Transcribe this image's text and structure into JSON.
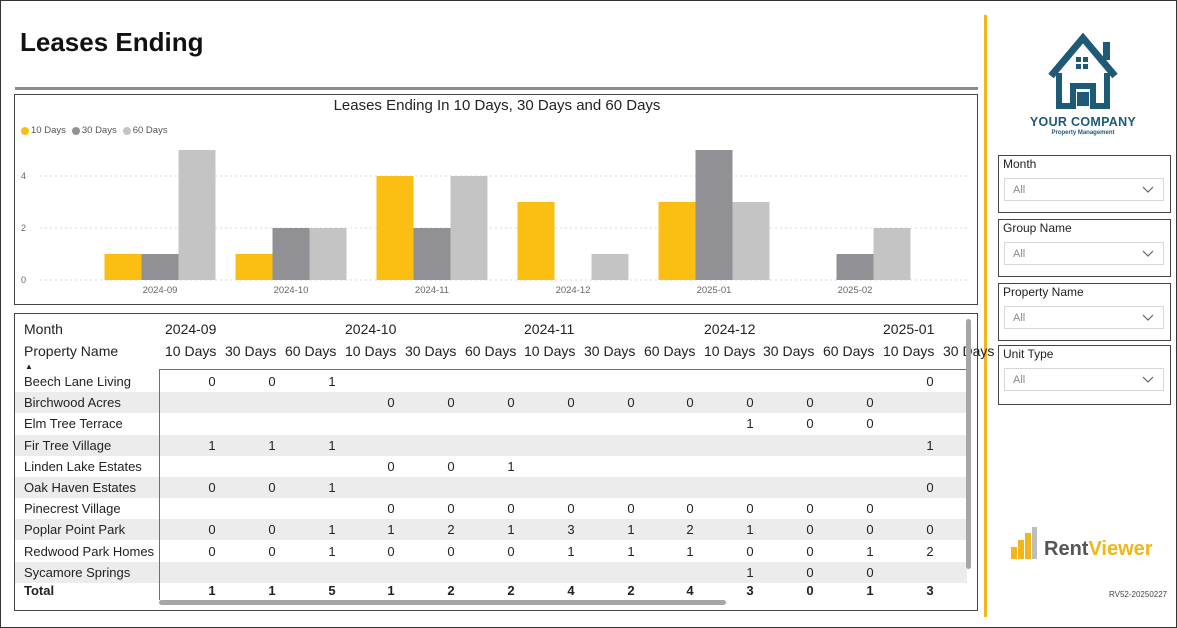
{
  "page": {
    "title": "Leases Ending",
    "version": "RV52-20250227"
  },
  "colors": {
    "accent": "#f2b51a",
    "d10": "#fbbe12",
    "d30": "#919094",
    "d60": "#c4c4c4",
    "brand_blue": "#1d5a75",
    "matrix_line": "#3a79c4"
  },
  "chart_data": {
    "type": "bar",
    "title": "Leases Ending In 10 Days, 30 Days and 60 Days",
    "categories": [
      "2024-09",
      "2024-10",
      "2024-11",
      "2024-12",
      "2025-01",
      "2025-02"
    ],
    "series": [
      {
        "name": "10 Days",
        "values": [
          1,
          1,
          4,
          3,
          3,
          0
        ]
      },
      {
        "name": "30 Days",
        "values": [
          1,
          2,
          2,
          0,
          5,
          1
        ]
      },
      {
        "name": "60 Days",
        "values": [
          5,
          2,
          4,
          1,
          3,
          2
        ]
      }
    ],
    "y_ticks": [
      "0",
      "2",
      "4"
    ],
    "ylim": [
      0,
      5
    ],
    "legend": "top-left",
    "grid": true
  },
  "matrix": {
    "month_label": "Month",
    "property_label": "Property Name",
    "months": [
      "2024-09",
      "2024-10",
      "2024-11",
      "2024-12",
      "2025-01"
    ],
    "subheaders": [
      "10 Days",
      "30 Days",
      "60 Days",
      "10 Days",
      "30 Days",
      "60 Days",
      "10 Days",
      "30 Days",
      "60 Days",
      "10 Days",
      "30 Days",
      "60 Days",
      "10 Days",
      "30 Days"
    ],
    "rows": [
      {
        "name": "Beech Lane Living",
        "cells": [
          "0",
          "0",
          "1",
          "",
          "",
          "",
          "",
          "",
          "",
          "",
          "",
          "",
          "0",
          ""
        ]
      },
      {
        "name": "Birchwood Acres",
        "cells": [
          "",
          "",
          "",
          "0",
          "0",
          "0",
          "0",
          "0",
          "0",
          "0",
          "0",
          "0",
          "",
          ""
        ]
      },
      {
        "name": "Elm Tree Terrace",
        "cells": [
          "",
          "",
          "",
          "",
          "",
          "",
          "",
          "",
          "",
          "1",
          "0",
          "0",
          "",
          ""
        ]
      },
      {
        "name": "Fir Tree Village",
        "cells": [
          "1",
          "1",
          "1",
          "",
          "",
          "",
          "",
          "",
          "",
          "",
          "",
          "",
          "1",
          ""
        ]
      },
      {
        "name": "Linden Lake Estates",
        "cells": [
          "",
          "",
          "",
          "0",
          "0",
          "1",
          "",
          "",
          "",
          "",
          "",
          "",
          "",
          ""
        ]
      },
      {
        "name": "Oak Haven Estates",
        "cells": [
          "0",
          "0",
          "1",
          "",
          "",
          "",
          "",
          "",
          "",
          "",
          "",
          "",
          "0",
          ""
        ]
      },
      {
        "name": "Pinecrest Village",
        "cells": [
          "",
          "",
          "",
          "0",
          "0",
          "0",
          "0",
          "0",
          "0",
          "0",
          "0",
          "0",
          "",
          ""
        ]
      },
      {
        "name": "Poplar Point Park",
        "cells": [
          "0",
          "0",
          "1",
          "1",
          "2",
          "1",
          "3",
          "1",
          "2",
          "1",
          "0",
          "0",
          "0",
          ""
        ]
      },
      {
        "name": "Redwood Park Homes",
        "cells": [
          "0",
          "0",
          "1",
          "0",
          "0",
          "0",
          "1",
          "1",
          "1",
          "0",
          "0",
          "1",
          "2",
          ""
        ]
      },
      {
        "name": "Sycamore Springs",
        "cells": [
          "",
          "",
          "",
          "",
          "",
          "",
          "",
          "",
          "",
          "1",
          "0",
          "0",
          "",
          ""
        ]
      }
    ],
    "total": {
      "name": "Total",
      "cells": [
        "1",
        "1",
        "5",
        "1",
        "2",
        "2",
        "4",
        "2",
        "4",
        "3",
        "0",
        "1",
        "3",
        ""
      ]
    }
  },
  "filters": [
    {
      "label": "Month",
      "value": "All"
    },
    {
      "label": "Group Name",
      "value": "All"
    },
    {
      "label": "Property Name",
      "value": "All"
    },
    {
      "label": "Unit Type",
      "value": "All"
    }
  ],
  "company": {
    "name": "YOUR COMPANY",
    "tagline": "Property Management"
  },
  "brand": {
    "part1": "Rent",
    "part2": "Viewer"
  },
  "icons": {
    "logo": "house-logo-icon",
    "chevron": "chevron-down-icon",
    "brand": "bar-chart-icon",
    "sort": "sort-ascending-icon"
  }
}
